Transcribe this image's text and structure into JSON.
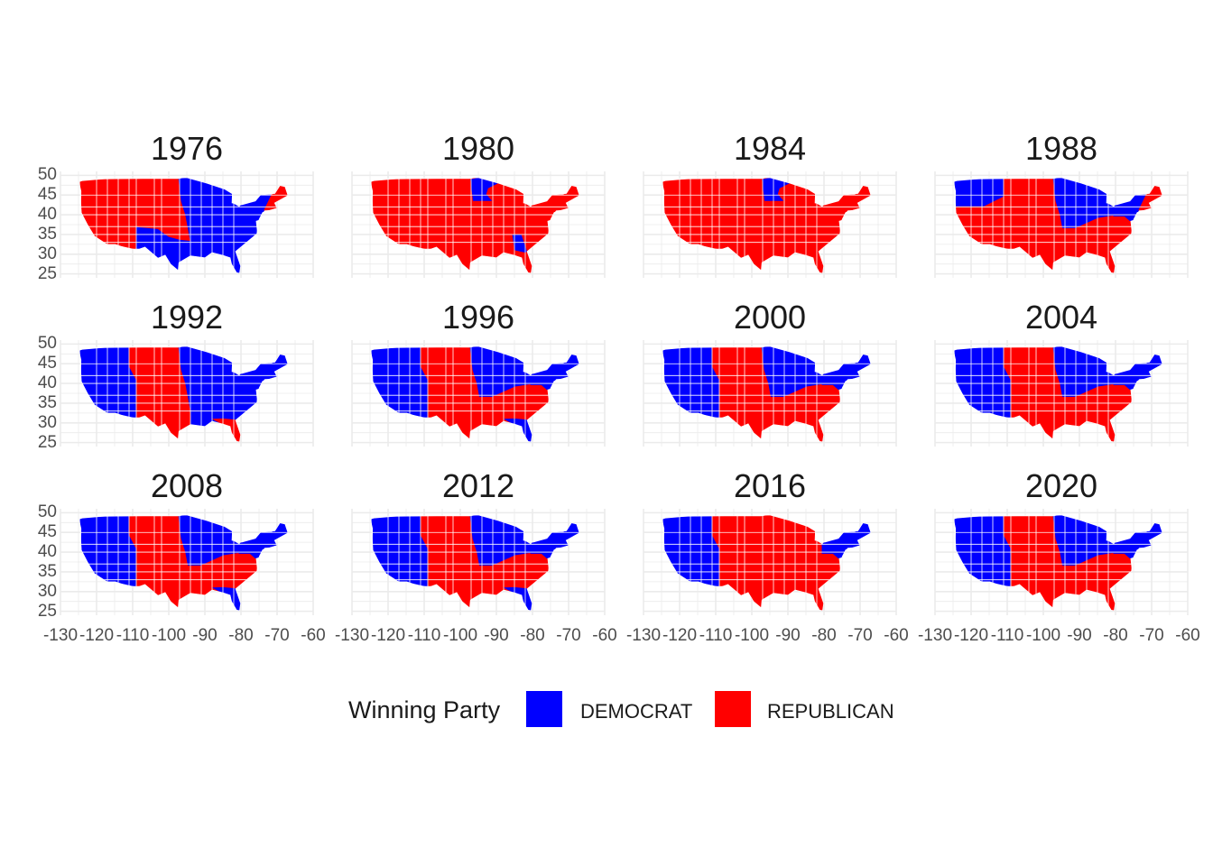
{
  "colors": {
    "democrat": "#0000ff",
    "republican": "#ff0000",
    "grid": "#ebebeb",
    "border": "#ffffff"
  },
  "legend": {
    "title": "Winning Party",
    "items": [
      {
        "label": "DEMOCRAT",
        "color": "#0000ff"
      },
      {
        "label": "REPUBLICAN",
        "color": "#ff0000"
      }
    ]
  },
  "axes": {
    "x_ticks": [
      "-130",
      "-120",
      "-110",
      "-100",
      "-90",
      "-80",
      "-70",
      "-60"
    ],
    "y_ticks": [
      "50",
      "45",
      "40",
      "35",
      "30",
      "25"
    ],
    "xlim": [
      -130,
      -60
    ],
    "ylim": [
      24,
      51
    ]
  },
  "chart_data": {
    "type": "map",
    "facet_by": "year",
    "panels": [
      {
        "year": "1976",
        "winners": {
          "west": "R",
          "northwest": "R",
          "texas": "D",
          "upper_midwest": "D",
          "south": "D",
          "florida": "D",
          "northeast": "D",
          "new_england": "R"
        }
      },
      {
        "year": "1980",
        "winners": {
          "west": "R",
          "northwest": "R",
          "texas": "R",
          "upper_midwest": "R",
          "minnesota": "D",
          "south": "R",
          "georgia": "D",
          "florida": "R",
          "northeast": "R",
          "new_england": "R"
        }
      },
      {
        "year": "1984",
        "winners": {
          "west": "R",
          "northwest": "R",
          "texas": "R",
          "upper_midwest": "R",
          "minnesota": "D",
          "south": "R",
          "florida": "R",
          "northeast": "R",
          "new_england": "R"
        }
      },
      {
        "year": "1988",
        "winners": {
          "west": "R",
          "northwest": "D",
          "texas": "R",
          "upper_midwest": "D",
          "south": "R",
          "florida": "R",
          "northeast": "D",
          "new_england": "R"
        }
      },
      {
        "year": "1992",
        "winners": {
          "west": "D",
          "northwest": "D",
          "texas": "R",
          "upper_midwest": "D",
          "south": "D",
          "florida": "R",
          "northeast": "D",
          "new_england": "D"
        }
      },
      {
        "year": "1996",
        "winners": {
          "west": "D",
          "northwest": "D",
          "texas": "R",
          "upper_midwest": "D",
          "south": "R",
          "florida": "D",
          "northeast": "D",
          "new_england": "D"
        }
      },
      {
        "year": "2000",
        "winners": {
          "west": "D",
          "northwest": "D",
          "texas": "R",
          "upper_midwest": "D",
          "south": "R",
          "florida": "R",
          "northeast": "D",
          "new_england": "D"
        }
      },
      {
        "year": "2004",
        "winners": {
          "west": "D",
          "northwest": "D",
          "texas": "R",
          "upper_midwest": "D",
          "south": "R",
          "florida": "R",
          "northeast": "D",
          "new_england": "D"
        }
      },
      {
        "year": "2008",
        "winners": {
          "west": "D",
          "northwest": "D",
          "texas": "R",
          "upper_midwest": "D",
          "south": "R",
          "florida": "D",
          "northeast": "D",
          "new_england": "D"
        }
      },
      {
        "year": "2012",
        "winners": {
          "west": "D",
          "northwest": "D",
          "texas": "R",
          "upper_midwest": "D",
          "south": "R",
          "florida": "D",
          "northeast": "D",
          "new_england": "D"
        }
      },
      {
        "year": "2016",
        "winners": {
          "west": "D",
          "northwest": "D",
          "texas": "R",
          "upper_midwest": "R",
          "south": "R",
          "florida": "R",
          "northeast": "D",
          "new_england": "D"
        }
      },
      {
        "year": "2020",
        "winners": {
          "west": "D",
          "northwest": "D",
          "texas": "R",
          "upper_midwest": "D",
          "south": "R",
          "florida": "R",
          "northeast": "D",
          "new_england": "D"
        }
      }
    ]
  }
}
